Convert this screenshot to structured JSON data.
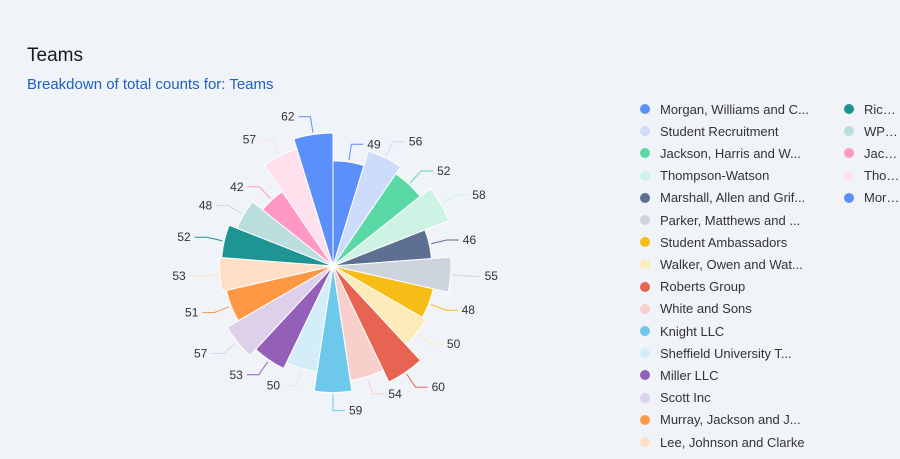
{
  "header": {
    "title": "Teams",
    "subtitle": "Breakdown of total counts for: Teams"
  },
  "chart_data": {
    "type": "pie",
    "style": "nightingale-rose",
    "title": "Teams",
    "legend_position": "right",
    "slices": [
      {
        "label": "Morgan, Williams and C...",
        "value": 49,
        "color": "#5b8ff9"
      },
      {
        "label": "Student Recruitment",
        "value": 56,
        "color": "#cddcfa"
      },
      {
        "label": "Jackson, Harris and W...",
        "value": 52,
        "color": "#5ad8a6"
      },
      {
        "label": "Thompson-Watson",
        "value": 58,
        "color": "#cdf3e4"
      },
      {
        "label": "Marshall, Allen and Grif...",
        "value": 46,
        "color": "#5d7092"
      },
      {
        "label": "Parker, Matthews and ...",
        "value": 55,
        "color": "#ced4de"
      },
      {
        "label": "Student Ambassadors",
        "value": 48,
        "color": "#f6bd16"
      },
      {
        "label": "Walker, Owen and Wat...",
        "value": 50,
        "color": "#fcebb9"
      },
      {
        "label": "Roberts Group",
        "value": 60,
        "color": "#e86452"
      },
      {
        "label": "White and Sons",
        "value": 54,
        "color": "#f8d0cb"
      },
      {
        "label": "Knight LLC",
        "value": 59,
        "color": "#6dc8ec"
      },
      {
        "label": "Sheffield University T...",
        "value": 50,
        "color": "#d3eef9"
      },
      {
        "label": "Miller LLC",
        "value": 53,
        "color": "#945fb9"
      },
      {
        "label": "Scott Inc",
        "value": 57,
        "color": "#decfea"
      },
      {
        "label": "Murray, Jackson and J...",
        "value": 51,
        "color": "#ff9845"
      },
      {
        "label": "Lee, Johnson and Clarke",
        "value": 53,
        "color": "#ffe0c7"
      },
      {
        "label": "Rich...",
        "value": 52,
        "color": "#1e9493"
      },
      {
        "label": "WP T...",
        "value": 48,
        "color": "#bbdede"
      },
      {
        "label": "Jack...",
        "value": 42,
        "color": "#ff99c3"
      },
      {
        "label": "Thor...",
        "value": 57,
        "color": "#ffe0ed"
      },
      {
        "label": "Morg...",
        "value": 62,
        "color": "#5b8ff9"
      }
    ]
  }
}
